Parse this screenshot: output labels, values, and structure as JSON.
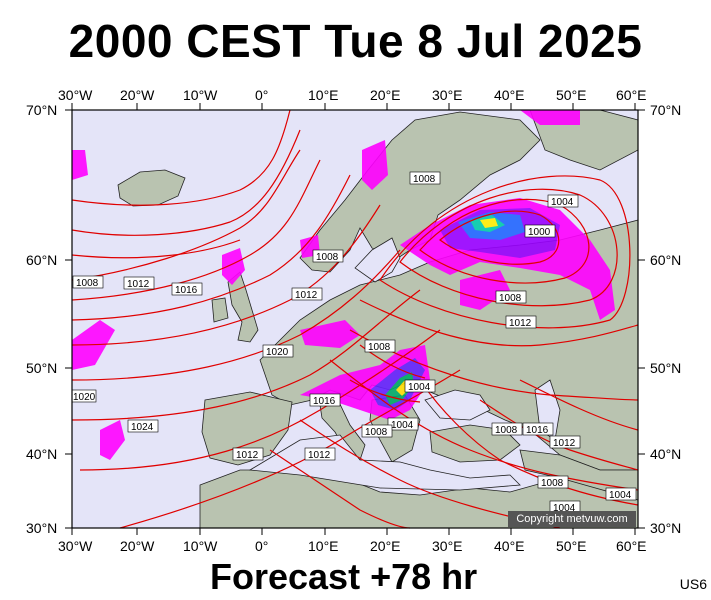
{
  "title": "2000 CEST Tue 8 Jul 2025",
  "footer": "Forecast +78 hr",
  "code": "US6",
  "copyright": "Copyright metvuw.com",
  "lon_labels": [
    "30°W",
    "20°W",
    "10°W",
    "0°",
    "10°E",
    "20°E",
    "30°E",
    "40°E",
    "50°E",
    "60°E"
  ],
  "lat_labels": [
    "70°N",
    "60°N",
    "50°N",
    "40°N",
    "30°N"
  ],
  "isobar_labels": [
    "1008",
    "1008",
    "1008",
    "1012",
    "1016",
    "1012",
    "1020",
    "1008",
    "1004",
    "1000",
    "1008",
    "1012",
    "1008",
    "1004",
    "1016",
    "1004",
    "1008",
    "1012",
    "1008",
    "1016",
    "1012",
    "1008",
    "1004",
    "1004",
    "1020",
    "1024",
    "1012",
    "1012"
  ],
  "colors": {
    "land": "#b9c3b0",
    "sea": "#e4e4f8",
    "isobar": "#e00000",
    "precip": "#ff00ff"
  }
}
